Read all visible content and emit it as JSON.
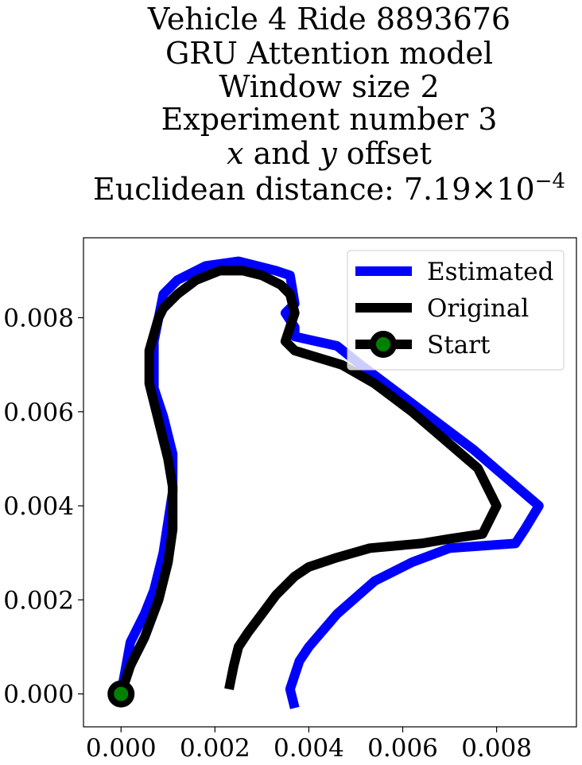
{
  "chart_data": {
    "type": "line",
    "title_lines": [
      "Vehicle 4 Ride 8893676",
      "GRU Attention model",
      "Window size 2",
      "Experiment number 3"
    ],
    "title_math_line": {
      "x": "x",
      "and": " and ",
      "y": "y",
      "rest": " offset"
    },
    "title_distance": {
      "prefix": "Euclidean distance: ",
      "mantissa": "7.19",
      "times": "×",
      "base": "10",
      "exponent": "−4"
    },
    "xlim": [
      -0.0008,
      0.0097
    ],
    "ylim": [
      -0.0007,
      0.0097
    ],
    "xticks": [
      {
        "value": 0.0,
        "label": "0.000"
      },
      {
        "value": 0.002,
        "label": "0.002"
      },
      {
        "value": 0.004,
        "label": "0.004"
      },
      {
        "value": 0.006,
        "label": "0.006"
      },
      {
        "value": 0.008,
        "label": "0.008"
      }
    ],
    "yticks": [
      {
        "value": 0.0,
        "label": "0.000"
      },
      {
        "value": 0.002,
        "label": "0.002"
      },
      {
        "value": 0.004,
        "label": "0.004"
      },
      {
        "value": 0.006,
        "label": "0.006"
      },
      {
        "value": 0.008,
        "label": "0.008"
      }
    ],
    "grid": false,
    "legend": {
      "placement": "upper-right",
      "entries": [
        {
          "label": "Estimated"
        },
        {
          "label": "Original"
        },
        {
          "label": "Start"
        }
      ]
    },
    "colors": {
      "estimated": "#0000ff",
      "original": "#000000",
      "start_marker_edge": "#000000",
      "start_marker_fill": "#008000"
    },
    "series": [
      {
        "key": "estimated",
        "points": [
          [
            0.0037,
            -0.0003
          ],
          [
            0.0036,
            0.0001
          ],
          [
            0.0038,
            0.0007
          ],
          [
            0.004,
            0.001
          ],
          [
            0.0046,
            0.0017
          ],
          [
            0.0054,
            0.0024
          ],
          [
            0.0062,
            0.0028
          ],
          [
            0.007,
            0.0031
          ],
          [
            0.0084,
            0.0032
          ],
          [
            0.0086,
            0.0035
          ],
          [
            0.0089,
            0.004
          ],
          [
            0.0082,
            0.0046
          ],
          [
            0.0075,
            0.0052
          ],
          [
            0.0067,
            0.0058
          ],
          [
            0.0059,
            0.0064
          ],
          [
            0.0051,
            0.007
          ],
          [
            0.0046,
            0.0074
          ],
          [
            0.0037,
            0.0076
          ],
          [
            0.0037,
            0.0078
          ],
          [
            0.0035,
            0.0081
          ],
          [
            0.0037,
            0.0083
          ],
          [
            0.0036,
            0.0089
          ],
          [
            0.0033,
            0.009
          ],
          [
            0.0029,
            0.0091
          ],
          [
            0.0025,
            0.0092
          ],
          [
            0.0018,
            0.0091
          ],
          [
            0.0012,
            0.0088
          ],
          [
            0.0009,
            0.0085
          ],
          [
            0.0008,
            0.008
          ],
          [
            0.0007,
            0.0075
          ],
          [
            0.0007,
            0.007
          ],
          [
            0.0007,
            0.0065
          ],
          [
            0.0009,
            0.0059
          ],
          [
            0.0011,
            0.0051
          ],
          [
            0.0011,
            0.0043
          ],
          [
            0.0009,
            0.003
          ],
          [
            0.0007,
            0.0022
          ],
          [
            0.0005,
            0.0017
          ],
          [
            0.0002,
            0.0011
          ],
          [
            0.0,
            0.0
          ]
        ]
      },
      {
        "key": "original",
        "points": [
          [
            0.0023,
            0.0001
          ],
          [
            0.0024,
            0.0006
          ],
          [
            0.0025,
            0.001
          ],
          [
            0.0027,
            0.0013
          ],
          [
            0.003,
            0.0017
          ],
          [
            0.0033,
            0.0021
          ],
          [
            0.0037,
            0.0025
          ],
          [
            0.004,
            0.0027
          ],
          [
            0.0046,
            0.0029
          ],
          [
            0.0053,
            0.0031
          ],
          [
            0.0064,
            0.0032
          ],
          [
            0.007,
            0.0033
          ],
          [
            0.0077,
            0.0034
          ],
          [
            0.008,
            0.004
          ],
          [
            0.0076,
            0.0048
          ],
          [
            0.0069,
            0.0054
          ],
          [
            0.0062,
            0.006
          ],
          [
            0.0054,
            0.0066
          ],
          [
            0.0047,
            0.007
          ],
          [
            0.0037,
            0.0073
          ],
          [
            0.0035,
            0.0075
          ],
          [
            0.0036,
            0.0078
          ],
          [
            0.0037,
            0.0081
          ],
          [
            0.0036,
            0.0085
          ],
          [
            0.0034,
            0.0087
          ],
          [
            0.003,
            0.0089
          ],
          [
            0.0026,
            0.009
          ],
          [
            0.0021,
            0.009
          ],
          [
            0.0016,
            0.0088
          ],
          [
            0.0012,
            0.0085
          ],
          [
            0.0009,
            0.0082
          ],
          [
            0.0008,
            0.008
          ],
          [
            0.0006,
            0.0073
          ],
          [
            0.0006,
            0.0066
          ],
          [
            0.0008,
            0.0058
          ],
          [
            0.001,
            0.005
          ],
          [
            0.0011,
            0.0044
          ],
          [
            0.0011,
            0.0035
          ],
          [
            0.001,
            0.0028
          ],
          [
            0.0008,
            0.002
          ],
          [
            0.0005,
            0.0012
          ],
          [
            0.0002,
            0.0006
          ],
          [
            0.0,
            0.0
          ]
        ]
      }
    ],
    "start_point": [
      0.0,
      0.0
    ]
  }
}
